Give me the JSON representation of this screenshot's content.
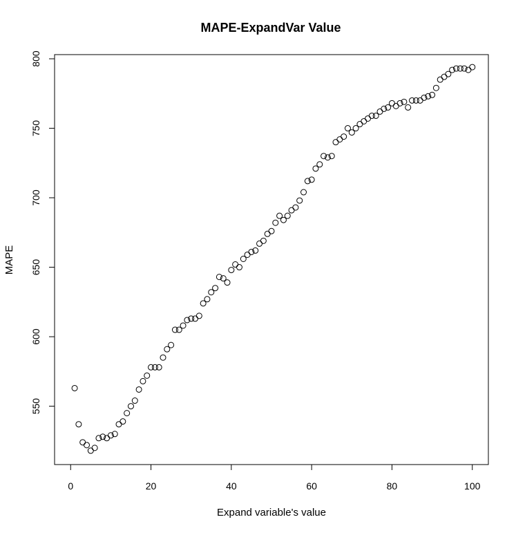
{
  "chart_data": {
    "type": "scatter",
    "title": "MAPE-ExpandVar Value",
    "xlabel": "Expand variable's value",
    "ylabel": "MAPE",
    "xlim": [
      -4,
      104
    ],
    "ylim": [
      508,
      803
    ],
    "x_ticks": [
      0,
      20,
      40,
      60,
      80,
      100
    ],
    "y_ticks": [
      550,
      600,
      650,
      700,
      750,
      800
    ],
    "grid": false,
    "marker": "open-circle",
    "series": [
      {
        "x": [
          1,
          2,
          3,
          4,
          5,
          6,
          7,
          8,
          9,
          10,
          11,
          12,
          13,
          14,
          15,
          16,
          17,
          18,
          19,
          20,
          21,
          22,
          23,
          24,
          25,
          26,
          27,
          28,
          29,
          30,
          31,
          32,
          33,
          34,
          35,
          36,
          37,
          38,
          39,
          40,
          41,
          42,
          43,
          44,
          45,
          46,
          47,
          48,
          49,
          50,
          51,
          52,
          53,
          54,
          55,
          56,
          57,
          58,
          59,
          60,
          61,
          62,
          63,
          64,
          65,
          66,
          67,
          68,
          69,
          70,
          71,
          72,
          73,
          74,
          75,
          76,
          77,
          78,
          79,
          80,
          81,
          82,
          83,
          84,
          85,
          86,
          87,
          88,
          89,
          90,
          91,
          92,
          93,
          94,
          95,
          96,
          97,
          98,
          99,
          100
        ],
        "y": [
          563,
          537,
          524,
          522,
          518,
          520,
          527,
          528,
          527,
          529,
          530,
          537,
          539,
          545,
          550,
          554,
          562,
          568,
          572,
          578,
          578,
          578,
          585,
          591,
          594,
          605,
          605,
          608,
          612,
          613,
          613,
          615,
          624,
          627,
          632,
          635,
          643,
          642,
          639,
          648,
          652,
          650,
          656,
          659,
          661,
          662,
          667,
          669,
          674,
          676,
          682,
          687,
          684,
          687,
          691,
          693,
          698,
          704,
          712,
          713,
          721,
          724,
          730,
          729,
          730,
          740,
          742,
          744,
          750,
          747,
          750,
          753,
          755,
          757,
          759,
          759,
          762,
          764,
          765,
          768,
          766,
          768,
          769,
          765,
          770,
          770,
          770,
          772,
          773,
          774,
          779,
          785,
          787,
          789,
          792,
          793,
          793,
          793,
          792,
          794
        ]
      }
    ]
  }
}
